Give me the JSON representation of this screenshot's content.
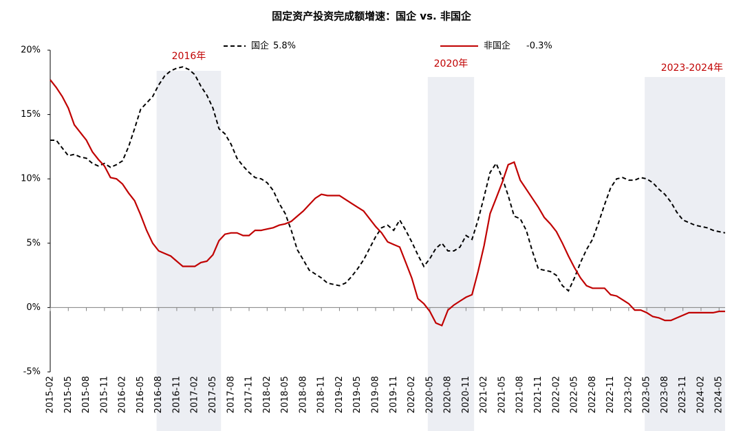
{
  "chart_data": {
    "type": "line",
    "title": "固定资产投资完成额增速：国企 vs. 非国企",
    "categories": [
      "2015-02",
      null,
      null,
      "2015-05",
      null,
      null,
      "2015-08",
      null,
      null,
      "2015-11",
      null,
      null,
      "2016-02",
      null,
      null,
      "2016-05",
      null,
      null,
      "2016-08",
      null,
      null,
      "2016-11",
      null,
      null,
      "2017-02",
      null,
      null,
      "2017-05",
      null,
      null,
      "2017-08",
      null,
      null,
      "2017-11",
      null,
      null,
      "2018-02",
      null,
      null,
      "2018-05",
      null,
      null,
      "2018-08",
      null,
      null,
      "2018-11",
      null,
      null,
      "2019-02",
      null,
      null,
      "2019-05",
      null,
      null,
      "2019-08",
      null,
      null,
      "2019-11",
      null,
      null,
      "2020-02",
      null,
      null,
      "2020-05",
      null,
      null,
      "2020-08",
      null,
      null,
      "2020-11",
      null,
      null,
      "2021-02",
      null,
      null,
      "2021-05",
      null,
      null,
      "2021-08",
      null,
      null,
      "2021-11",
      null,
      null,
      "2022-02",
      null,
      null,
      "2022-05",
      null,
      null,
      "2022-08",
      null,
      null,
      "2022-11",
      null,
      null,
      "2023-02",
      null,
      null,
      "2023-05",
      null,
      null,
      "2023-08",
      null,
      null,
      "2023-11",
      null,
      null,
      "2024-02",
      null,
      null,
      "2024-05",
      null
    ],
    "series": [
      {
        "name": "国企",
        "legend_label": "5.8%",
        "color": "#000000",
        "dash": true,
        "values": [
          13.0,
          13.0,
          12.4,
          11.8,
          11.9,
          11.7,
          11.6,
          11.2,
          11.0,
          11.2,
          10.9,
          11.1,
          11.4,
          12.5,
          13.9,
          15.4,
          15.9,
          16.4,
          17.3,
          18.0,
          18.4,
          18.6,
          18.7,
          18.5,
          18.1,
          17.2,
          16.5,
          15.5,
          13.9,
          13.5,
          12.7,
          11.6,
          11.0,
          10.5,
          10.1,
          10.0,
          9.7,
          9.1,
          8.1,
          7.3,
          6.0,
          4.5,
          3.7,
          2.9,
          2.6,
          2.3,
          1.9,
          1.8,
          1.7,
          1.9,
          2.4,
          3.0,
          3.7,
          4.6,
          5.5,
          6.2,
          6.4,
          6.0,
          6.8,
          6.0,
          5.1,
          4.1,
          3.2,
          3.8,
          4.6,
          5.0,
          4.4,
          4.4,
          4.7,
          5.6,
          5.3,
          6.8,
          8.6,
          10.5,
          11.2,
          10.1,
          8.7,
          7.1,
          6.9,
          6.0,
          4.4,
          3.0,
          2.9,
          2.8,
          2.5,
          1.7,
          1.3,
          2.3,
          3.5,
          4.5,
          5.3,
          6.6,
          8.0,
          9.3,
          10.0,
          10.1,
          9.9,
          9.9,
          10.1,
          10.0,
          9.7,
          9.2,
          8.8,
          8.2,
          7.4,
          6.8,
          6.6,
          6.4,
          6.3,
          6.2,
          6.0,
          5.9,
          5.8
        ]
      },
      {
        "name": "非国企",
        "legend_label": "-0.3%",
        "color": "#c00000",
        "dash": false,
        "values": [
          17.7,
          17.1,
          16.4,
          15.5,
          14.2,
          13.6,
          13.0,
          12.1,
          11.5,
          11.0,
          10.1,
          10.0,
          9.6,
          8.9,
          8.3,
          7.2,
          6.0,
          5.0,
          4.4,
          4.2,
          4.0,
          3.6,
          3.2,
          3.2,
          3.2,
          3.5,
          3.6,
          4.1,
          5.2,
          5.7,
          5.8,
          5.8,
          5.6,
          5.6,
          6.0,
          6.0,
          6.1,
          6.2,
          6.4,
          6.5,
          6.7,
          7.1,
          7.5,
          8.0,
          8.5,
          8.8,
          8.7,
          8.7,
          8.7,
          8.4,
          8.1,
          7.8,
          7.5,
          6.9,
          6.3,
          5.8,
          5.1,
          4.9,
          4.7,
          3.5,
          2.3,
          0.7,
          0.3,
          -0.3,
          -1.2,
          -1.4,
          -0.2,
          0.2,
          0.5,
          0.8,
          1.0,
          2.8,
          4.8,
          7.3,
          8.5,
          9.7,
          11.1,
          11.3,
          9.9,
          9.2,
          8.5,
          7.8,
          7.0,
          6.5,
          5.9,
          5.0,
          4.0,
          3.1,
          2.3,
          1.7,
          1.5,
          1.5,
          1.5,
          1.0,
          0.9,
          0.6,
          0.3,
          -0.2,
          -0.2,
          -0.4,
          -0.7,
          -0.8,
          -1.0,
          -1.0,
          -0.8,
          -0.6,
          -0.4,
          -0.4,
          -0.4,
          -0.4,
          -0.4,
          -0.3,
          -0.3
        ]
      }
    ],
    "ylim": [
      -5,
      20
    ],
    "yticks": [
      {
        "value": -5,
        "label": "-5%"
      },
      {
        "value": 0,
        "label": "0%"
      },
      {
        "value": 5,
        "label": "5%"
      },
      {
        "value": 10,
        "label": "10%"
      },
      {
        "value": 15,
        "label": "15%"
      },
      {
        "value": 20,
        "label": "20%"
      }
    ],
    "shaded_regions": [
      {
        "label": "2016年",
        "start": "2016-08",
        "end": "2017-05"
      },
      {
        "label": "2020年",
        "start": "2020-05",
        "end": "2020-11"
      },
      {
        "label": "2023-2024年",
        "start": "2023-05",
        "end": "2024-05"
      }
    ],
    "shade_color": "#eceef3"
  }
}
